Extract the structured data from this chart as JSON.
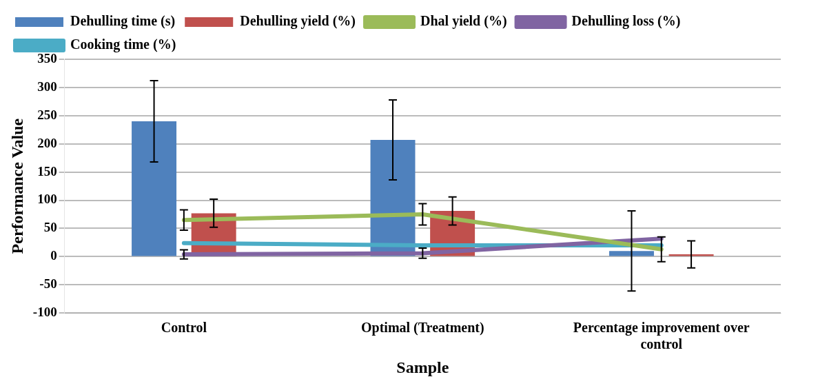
{
  "chart_data": {
    "type": "bar",
    "xlabel": "Sample",
    "ylabel": "Performance Value",
    "categories": [
      "Control",
      "Optimal (Treatment)",
      "Percentage improvement over control"
    ],
    "series": [
      {
        "name": "Dehulling time (s)",
        "color": "#4f81bd",
        "values": [
          240,
          207,
          10
        ],
        "errors": [
          72,
          71,
          71
        ]
      },
      {
        "name": "Dehulling yield (%)",
        "color": "#c0504d",
        "values": [
          77,
          81,
          4
        ],
        "errors": [
          25,
          25,
          24
        ]
      },
      {
        "name": "Dhal yield (%)",
        "type": "line",
        "color": "#9bbb59",
        "values": [
          65,
          75,
          13
        ],
        "errors": [
          18,
          19,
          22
        ]
      },
      {
        "name": "Dehulling loss (%)",
        "type": "line",
        "color": "#8064a2",
        "values": [
          4,
          6,
          32
        ],
        "errors": [
          8,
          9,
          null
        ]
      },
      {
        "name": "Cooking time (%)",
        "type": "line",
        "color": "#4bacc6",
        "values": [
          24,
          20,
          20
        ]
      }
    ],
    "ylim": [
      -100,
      350
    ],
    "yticks": [
      -100,
      -50,
      0,
      50,
      100,
      150,
      200,
      250,
      300,
      350
    ],
    "grid": "y",
    "legend": "top"
  }
}
